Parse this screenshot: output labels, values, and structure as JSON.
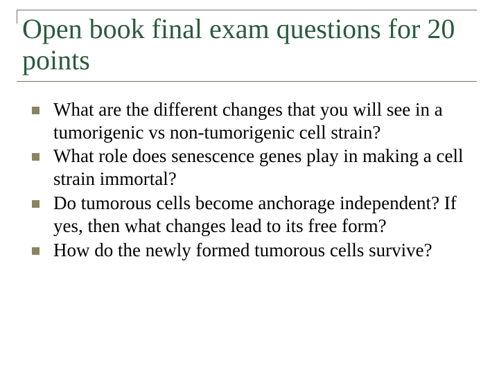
{
  "slide": {
    "title": "Open book final exam questions for 20 points",
    "title_color": "#2a5b3c",
    "title_fontsize": 40,
    "rule_color": "#777063",
    "bullet_marker_color": "#8a8460",
    "bullet_marker_size": 11,
    "body_fontsize": 27,
    "body_color": "#000000",
    "background_color": "#ffffff",
    "bullets": [
      {
        "text": "What are the different changes that you will see in a tumorigenic vs non-tumorigenic cell strain?"
      },
      {
        "text": "What role does senescence genes play in  making a cell strain immortal?"
      },
      {
        "text": "Do tumorous cells become anchorage independent? If yes, then what changes lead to its free form?"
      },
      {
        "text": "How do the newly formed tumorous cells survive?"
      }
    ]
  }
}
